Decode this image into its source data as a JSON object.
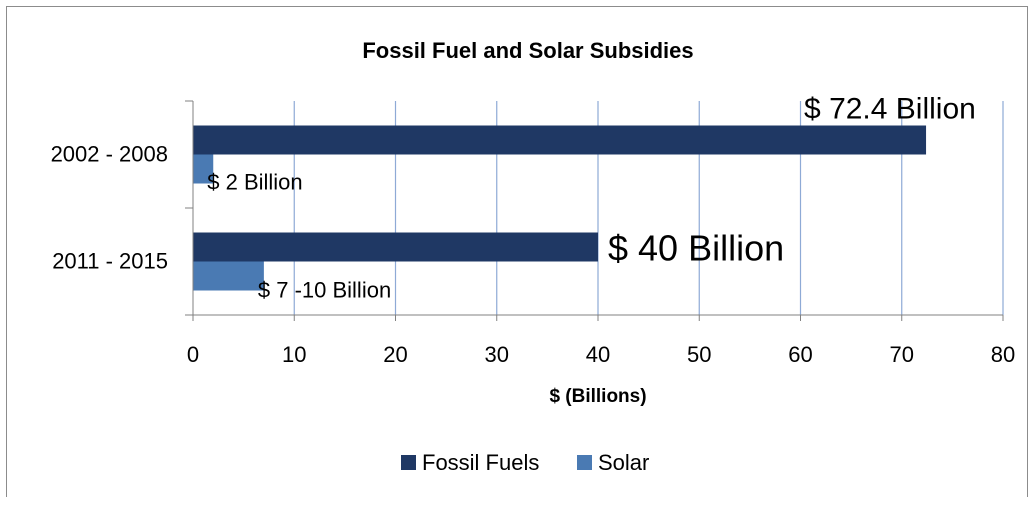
{
  "chart_data": {
    "type": "bar",
    "orientation": "horizontal",
    "title": "Fossil Fuel and Solar Subsidies",
    "xlabel": "$ (Billions)",
    "ylabel": "",
    "xlim": [
      0,
      80
    ],
    "x_ticks": [
      "0",
      "10",
      "20",
      "30",
      "40",
      "50",
      "60",
      "70",
      "80"
    ],
    "categories": [
      "2002 - 2008",
      "2011 - 2015"
    ],
    "series": [
      {
        "name": "Fossil Fuels",
        "color": "#1f3864",
        "values": [
          72.4,
          40
        ],
        "data_labels": [
          "$ 72.4 Billion",
          "$ 40 Billion"
        ]
      },
      {
        "name": "Solar",
        "color": "#4a7ab3",
        "values": [
          2,
          7
        ],
        "data_labels": [
          "$ 2 Billion",
          "$ 7 -10 Billion"
        ]
      }
    ],
    "grid": "vertical major gridlines",
    "legend_position": "bottom"
  }
}
